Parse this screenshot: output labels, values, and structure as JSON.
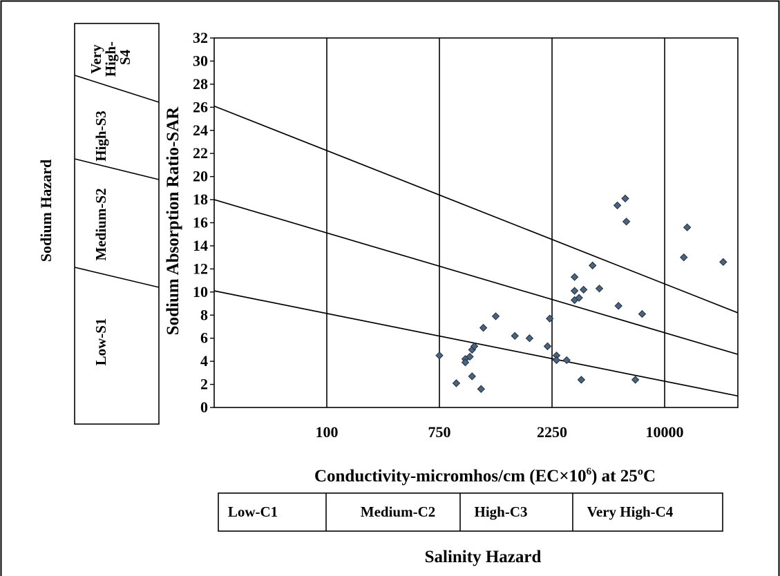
{
  "chart_data": {
    "type": "scatter",
    "title": "",
    "xlabel": "Conductivity-micromhos/cm (EC×10",
    "xlabel_sup": "6",
    "xlabel_tail": ") at 25ºC",
    "ylabel": "Sodium Absorption Ratio-SAR",
    "ylim": [
      0,
      32
    ],
    "yticks": [
      0,
      2,
      4,
      6,
      8,
      10,
      12,
      14,
      16,
      18,
      20,
      22,
      24,
      26,
      28,
      30,
      32
    ],
    "xticks": [
      "100",
      "750",
      "2250",
      "10000"
    ],
    "grid": "vertical",
    "marker": {
      "shape": "diamond",
      "color": "#4a6480",
      "stroke": "#1f2f40"
    },
    "x_unit_note": "x values are positions along the axis measured in tick-interval units: 0 = axis start, 1 = 100, 2 = 750, 3 = 2250, 4 = 10000, 4.65 = axis end",
    "x_domain": [
      0,
      4.65
    ],
    "classification_lines": [
      {
        "x": [
          0,
          4.65
        ],
        "y": [
          26.1,
          8.2
        ]
      },
      {
        "x": [
          0,
          4.65
        ],
        "y": [
          18.0,
          4.6
        ]
      },
      {
        "x": [
          0,
          4.65
        ],
        "y": [
          10.1,
          1.0
        ]
      }
    ],
    "points": [
      {
        "x": 2.0,
        "y": 4.5
      },
      {
        "x": 2.15,
        "y": 2.1
      },
      {
        "x": 2.23,
        "y": 4.2
      },
      {
        "x": 2.23,
        "y": 3.9
      },
      {
        "x": 2.27,
        "y": 4.4
      },
      {
        "x": 2.29,
        "y": 2.7
      },
      {
        "x": 2.29,
        "y": 5.0
      },
      {
        "x": 2.31,
        "y": 5.3
      },
      {
        "x": 2.37,
        "y": 1.6
      },
      {
        "x": 2.39,
        "y": 6.9
      },
      {
        "x": 2.5,
        "y": 7.9
      },
      {
        "x": 2.67,
        "y": 6.2
      },
      {
        "x": 2.8,
        "y": 6.0
      },
      {
        "x": 2.96,
        "y": 5.3
      },
      {
        "x": 2.98,
        "y": 7.7
      },
      {
        "x": 3.04,
        "y": 4.5
      },
      {
        "x": 3.04,
        "y": 4.1
      },
      {
        "x": 3.13,
        "y": 4.1
      },
      {
        "x": 3.2,
        "y": 11.3
      },
      {
        "x": 3.2,
        "y": 10.1
      },
      {
        "x": 3.2,
        "y": 9.3
      },
      {
        "x": 3.24,
        "y": 9.5
      },
      {
        "x": 3.26,
        "y": 2.4
      },
      {
        "x": 3.28,
        "y": 10.2
      },
      {
        "x": 3.36,
        "y": 12.3
      },
      {
        "x": 3.42,
        "y": 10.3
      },
      {
        "x": 3.58,
        "y": 17.5
      },
      {
        "x": 3.59,
        "y": 8.8
      },
      {
        "x": 3.65,
        "y": 18.1
      },
      {
        "x": 3.66,
        "y": 16.1
      },
      {
        "x": 3.74,
        "y": 2.4
      },
      {
        "x": 3.8,
        "y": 8.1
      },
      {
        "x": 4.17,
        "y": 13.0
      },
      {
        "x": 4.2,
        "y": 15.6
      },
      {
        "x": 4.52,
        "y": 12.6
      }
    ]
  },
  "sodium_hazard": {
    "title": "Sodium Hazard",
    "bands": [
      "Low-S1",
      "Medium-S2",
      "High-S3",
      "Very High-S4"
    ]
  },
  "salinity_hazard": {
    "title": "Salinity Hazard",
    "classes": [
      "Low-C1",
      "Medium-C2",
      "High-C3",
      "Very High-C4"
    ]
  }
}
